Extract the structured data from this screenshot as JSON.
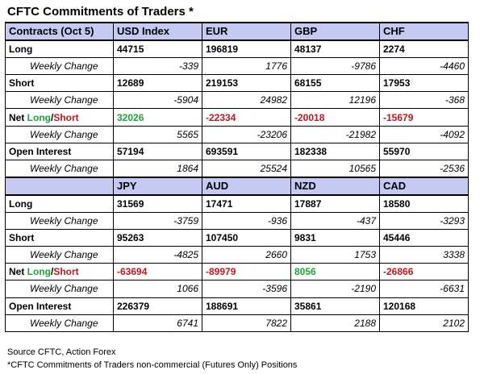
{
  "title": "CFTC Commitments of Traders *",
  "colors": {
    "header_bg": "#c6c9f2",
    "positive": "#1aa53a",
    "negative": "#c0151d"
  },
  "sections": [
    {
      "header": [
        "Contracts (Oct 5)",
        "USD Index",
        "EUR",
        "GBP",
        "CHF"
      ],
      "long": [
        "44715",
        "196819",
        "48137",
        "2274"
      ],
      "long_wc": [
        "-339",
        "1776",
        "-9786",
        "-4460"
      ],
      "short": [
        "12689",
        "219153",
        "68155",
        "17953"
      ],
      "short_wc": [
        "-5904",
        "24982",
        "12196",
        "-368"
      ],
      "net": [
        "32026",
        "-22334",
        "-20018",
        "-15679"
      ],
      "net_wc": [
        "5565",
        "-23206",
        "-21982",
        "-4092"
      ],
      "oi": [
        "57194",
        "693591",
        "182338",
        "55970"
      ],
      "oi_wc": [
        "1864",
        "25524",
        "10565",
        "-2536"
      ]
    },
    {
      "header": [
        "",
        "JPY",
        "AUD",
        "NZD",
        "CAD"
      ],
      "long": [
        "31569",
        "17471",
        "17887",
        "18580"
      ],
      "long_wc": [
        "-3759",
        "-936",
        "-437",
        "-3293"
      ],
      "short": [
        "95263",
        "107450",
        "9831",
        "45446"
      ],
      "short_wc": [
        "-4825",
        "2660",
        "1753",
        "3338"
      ],
      "net": [
        "-63694",
        "-89979",
        "8056",
        "-26866"
      ],
      "net_wc": [
        "1066",
        "-3596",
        "-2190",
        "-6631"
      ],
      "oi": [
        "226379",
        "188691",
        "35861",
        "120168"
      ],
      "oi_wc": [
        "6741",
        "7822",
        "2188",
        "2102"
      ]
    }
  ],
  "labels": {
    "long": "Long",
    "short": "Short",
    "net_prefix": "Net ",
    "net_long": "Long",
    "net_sep": "/",
    "net_short": "Short",
    "open_interest": "Open Interest",
    "weekly_change": "Weekly Change"
  },
  "footer": {
    "source": "Source CFTC, Action Forex",
    "note": "*CFTC Commitments of Traders non-commercial (Futures Only) Positions"
  }
}
